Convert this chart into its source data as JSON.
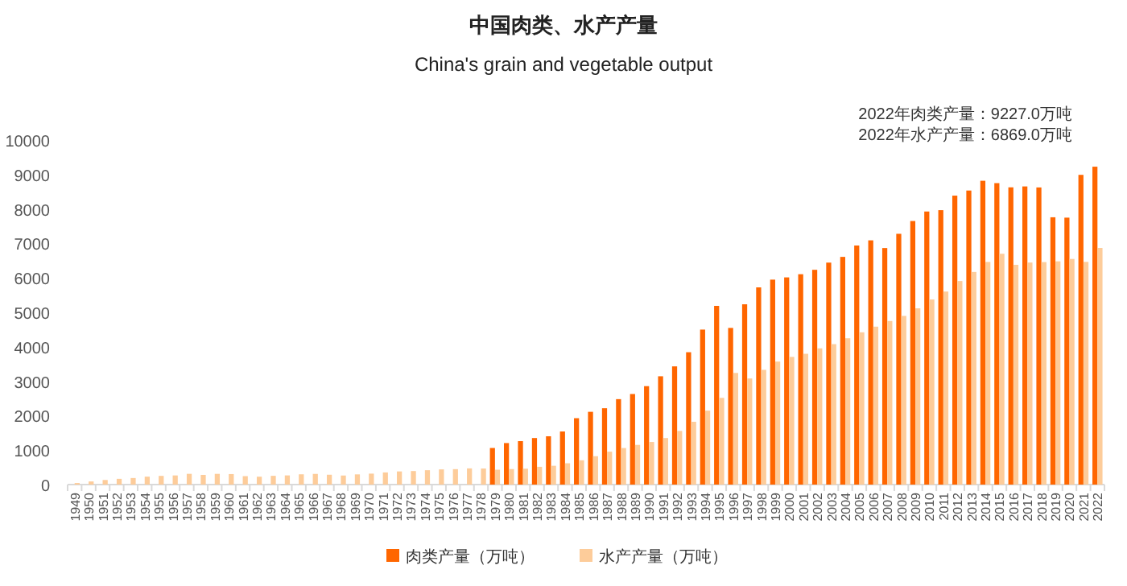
{
  "chart_data": {
    "type": "bar",
    "title": "中国肉类、水产产量",
    "subtitle": "China's grain and vegetable output",
    "annotations": [
      "2022年肉类产量：9227.0万吨",
      "2022年水产产量：6869.0万吨"
    ],
    "categories": [
      "1949",
      "1950",
      "1951",
      "1952",
      "1953",
      "1954",
      "1955",
      "1956",
      "1957",
      "1958",
      "1959",
      "1960",
      "1961",
      "1962",
      "1963",
      "1964",
      "1965",
      "1966",
      "1967",
      "1968",
      "1969",
      "1970",
      "1971",
      "1972",
      "1973",
      "1974",
      "1975",
      "1976",
      "1977",
      "1978",
      "1979",
      "1980",
      "1981",
      "1982",
      "1983",
      "1984",
      "1985",
      "1986",
      "1987",
      "1988",
      "1989",
      "1990",
      "1991",
      "1992",
      "1993",
      "1994",
      "1995",
      "1996",
      "1997",
      "1998",
      "1999",
      "2000",
      "2001",
      "2002",
      "2003",
      "2004",
      "2005",
      "2006",
      "2007",
      "2008",
      "2009",
      "2010",
      "2011",
      "2012",
      "2013",
      "2014",
      "2015",
      "2016",
      "2017",
      "2018",
      "2019",
      "2020",
      "2021",
      "2022"
    ],
    "series": [
      {
        "name": "肉类产量（万吨）",
        "color": "#ff6600",
        "values": [
          null,
          null,
          null,
          null,
          null,
          null,
          null,
          null,
          null,
          null,
          null,
          null,
          null,
          null,
          null,
          null,
          null,
          null,
          null,
          null,
          null,
          null,
          null,
          null,
          null,
          null,
          null,
          null,
          null,
          null,
          1062,
          1205,
          1261,
          1351,
          1402,
          1541,
          1927,
          2112,
          2216,
          2480,
          2629,
          2857,
          3144,
          3431,
          3842,
          4499,
          5187,
          4547,
          5233,
          5724,
          5949,
          6014,
          6106,
          6234,
          6443,
          6609,
          6939,
          7089,
          6866,
          7279,
          7650,
          7926,
          7965,
          8387,
          8535,
          8818,
          8750,
          8628,
          8654,
          8625,
          7759,
          7748,
          8990,
          9227
        ]
      },
      {
        "name": "水产产量（万吨）",
        "color": "#fdcc9a",
        "values": [
          45,
          91,
          133,
          167,
          190,
          230,
          252,
          265,
          312,
          281,
          311,
          305,
          245,
          229,
          254,
          266,
          298,
          310,
          286,
          263,
          296,
          318,
          352,
          382,
          393,
          417,
          441,
          448,
          470,
          466,
          431,
          450,
          461,
          516,
          546,
          619,
          705,
          824,
          955,
          1061,
          1152,
          1237,
          1351,
          1557,
          1823,
          2146,
          2517,
          3240,
          3080,
          3330,
          3570,
          3706,
          3796,
          3954,
          4077,
          4247,
          4420,
          4584,
          4748,
          4896,
          5116,
          5373,
          5603,
          5908,
          6172,
          6462,
          6700,
          6379,
          6445,
          6458,
          6480,
          6549,
          6464,
          6869
        ]
      }
    ],
    "ylim": [
      0,
      10000
    ],
    "yticks": [
      0,
      1000,
      2000,
      3000,
      4000,
      5000,
      6000,
      7000,
      8000,
      9000,
      10000
    ],
    "grid": false,
    "legend": "bottom"
  }
}
